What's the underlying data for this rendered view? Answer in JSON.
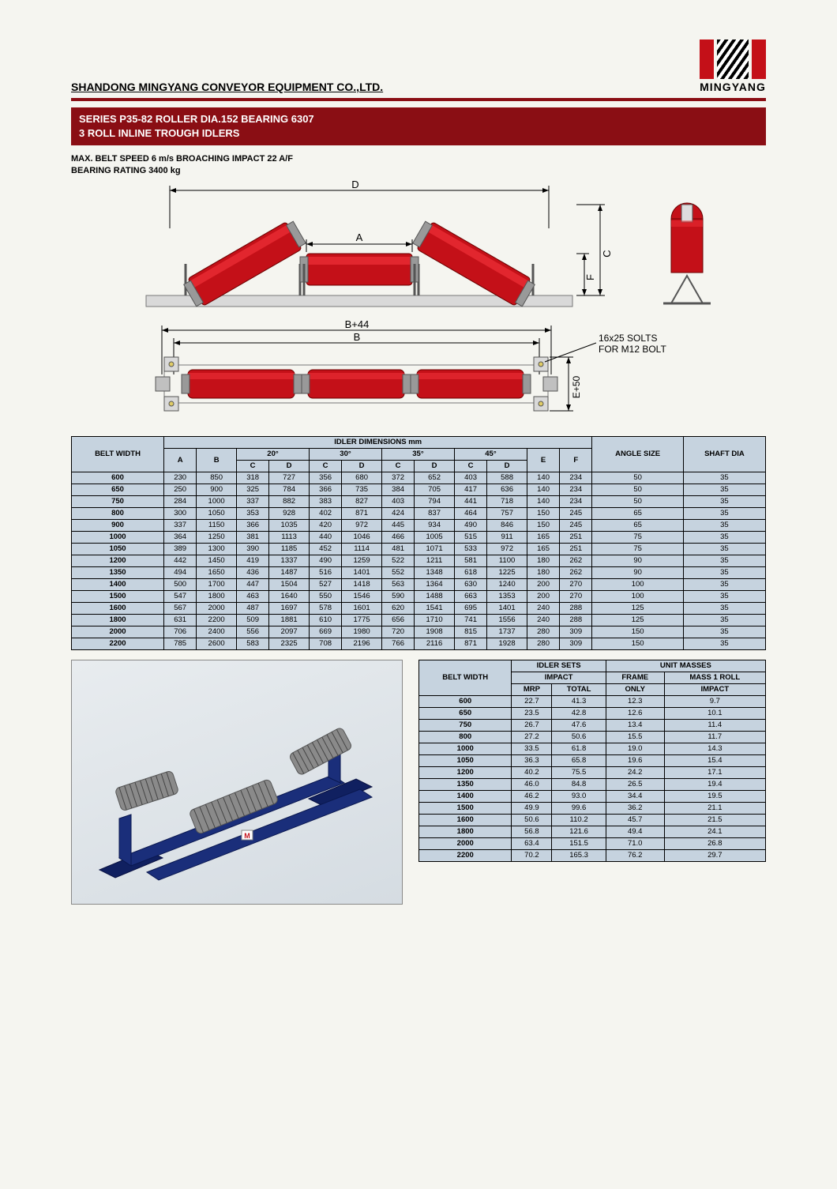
{
  "company": "SHANDONG MINGYANG CONVEYOR EQUIPMENT CO.,LTD.",
  "logo_text": "MINGYANG",
  "title_line1": "SERIES P35-82 ROLLER DIA.152 BEARING 6307",
  "title_line2": "3 ROLL INLINE TROUGH IDLERS",
  "spec_line1": "MAX. BELT SPEED 6 m/s BROACHING IMPACT 22 A/F",
  "spec_line2": "BEARING RATING 3400 kg",
  "diagram": {
    "labels": {
      "D": "D",
      "A": "A",
      "C": "C",
      "F": "F",
      "B44": "B+44",
      "B": "B",
      "E50": "E+50",
      "slots": "16x25 SOLTS\nFOR M12 BOLT"
    },
    "roller_red": "#c41018",
    "roller_highlight": "#ef2a30",
    "frame_gray": "#bfbfbf",
    "frame_dark": "#8a8a8a",
    "dim_color": "#000"
  },
  "table1": {
    "headers": {
      "belt": "BELT WIDTH",
      "idler": "IDLER DIMENSIONS mm",
      "angle": "ANGLE SIZE",
      "shaft": "SHAFT DIA",
      "a20": "20°",
      "a30": "30°",
      "a35": "35°",
      "a45": "45°",
      "A": "A",
      "B": "B",
      "C": "C",
      "D": "D",
      "E": "E",
      "F": "F"
    },
    "rows": [
      [
        "600",
        230,
        850,
        318,
        727,
        356,
        680,
        372,
        652,
        403,
        588,
        140,
        234,
        50,
        35
      ],
      [
        "650",
        250,
        900,
        325,
        784,
        366,
        735,
        384,
        705,
        417,
        636,
        140,
        234,
        50,
        35
      ],
      [
        "750",
        284,
        1000,
        337,
        882,
        383,
        827,
        403,
        794,
        441,
        718,
        140,
        234,
        50,
        35
      ],
      [
        "800",
        300,
        1050,
        353,
        928,
        402,
        871,
        424,
        837,
        464,
        757,
        150,
        245,
        65,
        35
      ],
      [
        "900",
        337,
        1150,
        366,
        1035,
        420,
        972,
        445,
        934,
        490,
        846,
        150,
        245,
        65,
        35
      ],
      [
        "1000",
        364,
        1250,
        381,
        1113,
        440,
        1046,
        466,
        1005,
        515,
        911,
        165,
        251,
        75,
        35
      ],
      [
        "1050",
        389,
        1300,
        390,
        1185,
        452,
        1114,
        481,
        1071,
        533,
        972,
        165,
        251,
        75,
        35
      ],
      [
        "1200",
        442,
        1450,
        419,
        1337,
        490,
        1259,
        522,
        1211,
        581,
        1100,
        180,
        262,
        90,
        35
      ],
      [
        "1350",
        494,
        1650,
        436,
        1487,
        516,
        1401,
        552,
        1348,
        618,
        1225,
        180,
        262,
        90,
        35
      ],
      [
        "1400",
        500,
        1700,
        447,
        1504,
        527,
        1418,
        563,
        1364,
        630,
        1240,
        200,
        270,
        100,
        35
      ],
      [
        "1500",
        547,
        1800,
        463,
        1640,
        550,
        1546,
        590,
        1488,
        663,
        1353,
        200,
        270,
        100,
        35
      ],
      [
        "1600",
        567,
        2000,
        487,
        1697,
        578,
        1601,
        620,
        1541,
        695,
        1401,
        240,
        288,
        125,
        35
      ],
      [
        "1800",
        631,
        2200,
        509,
        1881,
        610,
        1775,
        656,
        1710,
        741,
        1556,
        240,
        288,
        125,
        35
      ],
      [
        "2000",
        706,
        2400,
        556,
        2097,
        669,
        1980,
        720,
        1908,
        815,
        1737,
        280,
        309,
        150,
        35
      ],
      [
        "2200",
        785,
        2600,
        583,
        2325,
        708,
        2196,
        766,
        2116,
        871,
        1928,
        280,
        309,
        150,
        35
      ]
    ]
  },
  "render": {
    "frame_color": "#1a2e7a",
    "roller_color": "#777",
    "base_color": "#102060"
  },
  "table2": {
    "headers": {
      "belt": "BELT WIDTH",
      "idler_sets": "IDLER SETS",
      "unit_masses": "UNIT MASSES",
      "impact": "IMPACT",
      "frame": "FRAME",
      "mass1roll": "MASS 1 ROLL",
      "mrp": "MRP",
      "total": "TOTAL",
      "only": "ONLY",
      "impact2": "IMPACT"
    },
    "rows": [
      [
        "600",
        "22.7",
        "41.3",
        "12.3",
        "9.7"
      ],
      [
        "650",
        "23.5",
        "42.8",
        "12.6",
        "10.1"
      ],
      [
        "750",
        "26.7",
        "47.6",
        "13.4",
        "11.4"
      ],
      [
        "800",
        "27.2",
        "50.6",
        "15.5",
        "11.7"
      ],
      [
        "1000",
        "33.5",
        "61.8",
        "19.0",
        "14.3"
      ],
      [
        "1050",
        "36.3",
        "65.8",
        "19.6",
        "15.4"
      ],
      [
        "1200",
        "40.2",
        "75.5",
        "24.2",
        "17.1"
      ],
      [
        "1350",
        "46.0",
        "84.8",
        "26.5",
        "19.4"
      ],
      [
        "1400",
        "46.2",
        "93.0",
        "34.4",
        "19.5"
      ],
      [
        "1500",
        "49.9",
        "99.6",
        "36.2",
        "21.1"
      ],
      [
        "1600",
        "50.6",
        "110.2",
        "45.7",
        "21.5"
      ],
      [
        "1800",
        "56.8",
        "121.6",
        "49.4",
        "24.1"
      ],
      [
        "2000",
        "63.4",
        "151.5",
        "71.0",
        "26.8"
      ],
      [
        "2200",
        "70.2",
        "165.3",
        "76.2",
        "29.7"
      ]
    ]
  }
}
